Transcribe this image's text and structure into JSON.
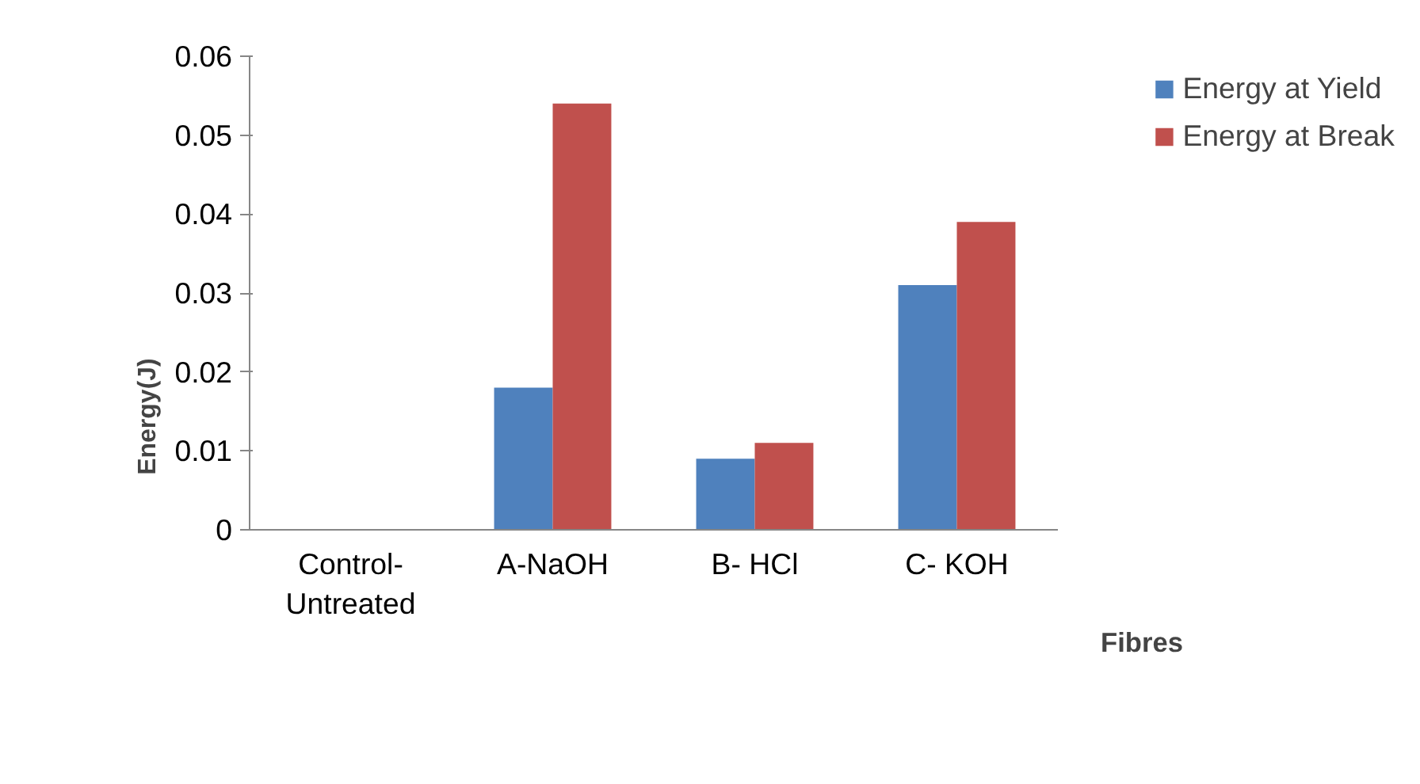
{
  "chart_data": {
    "type": "bar",
    "xlabel": "Fibres",
    "ylabel": "Energy(J)",
    "categories": [
      "Control-\nUntreated",
      "A-NaOH",
      "B- HCl",
      "C- KOH"
    ],
    "series": [
      {
        "name": "Energy at Yield",
        "color": "#4f81bd",
        "values": [
          0,
          0.018,
          0.009,
          0.031
        ]
      },
      {
        "name": "Energy at Break",
        "color": "#c0504d",
        "values": [
          0,
          0.054,
          0.011,
          0.039
        ]
      }
    ],
    "ylim": [
      0,
      0.06
    ],
    "yticks": [
      {
        "value": 0,
        "label": "0"
      },
      0.01,
      0.02,
      0.03,
      0.04,
      0.05,
      0.06
    ],
    "grid": false,
    "legend": "top right"
  }
}
